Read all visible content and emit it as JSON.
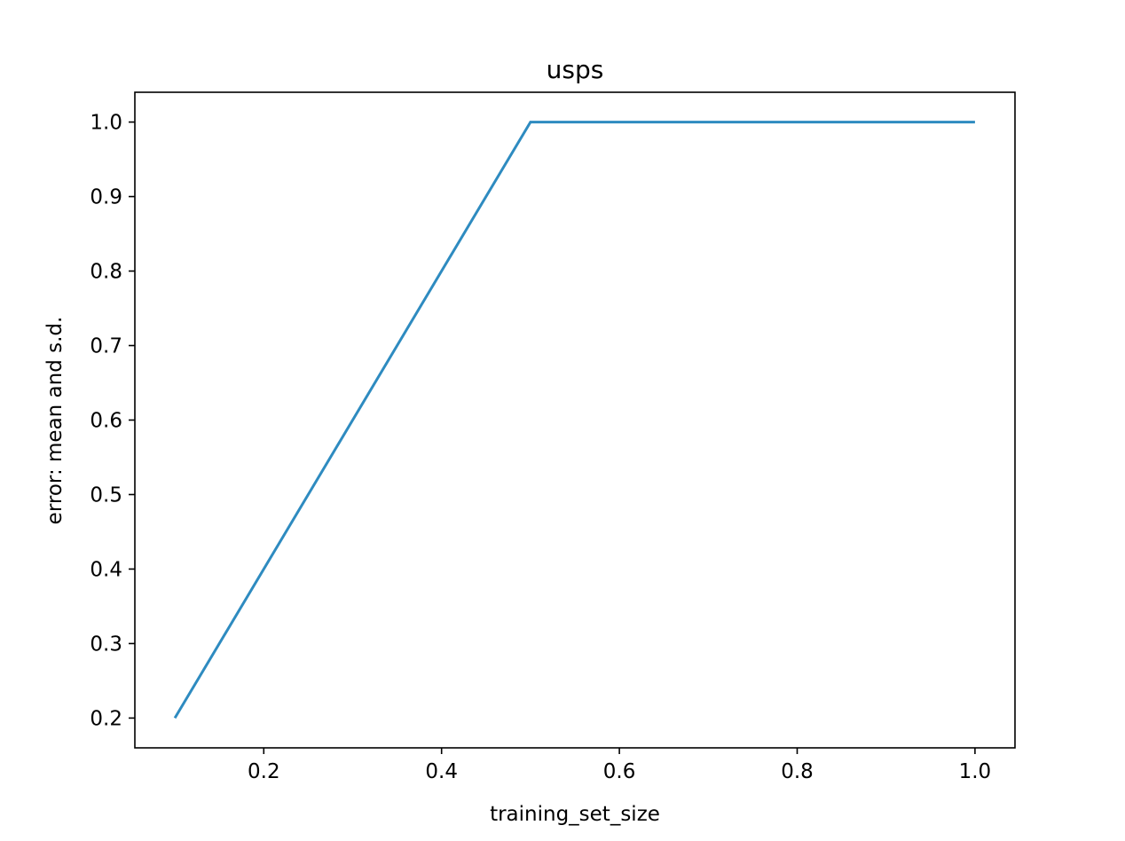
{
  "chart_data": {
    "type": "line",
    "title": "usps",
    "xlabel": "training_set_size",
    "ylabel": "error: mean and s.d.",
    "xlim": [
      0.055,
      1.045
    ],
    "ylim": [
      0.16,
      1.04
    ],
    "xticks": [
      0.2,
      0.4,
      0.6,
      0.8,
      1.0
    ],
    "xtick_labels": [
      "0.2",
      "0.4",
      "0.6",
      "0.8",
      "1.0"
    ],
    "yticks": [
      0.2,
      0.3,
      0.4,
      0.5,
      0.6,
      0.7,
      0.8,
      0.9,
      1.0
    ],
    "ytick_labels": [
      "0.2",
      "0.3",
      "0.4",
      "0.5",
      "0.6",
      "0.7",
      "0.8",
      "0.9",
      "1.0"
    ],
    "grid": false,
    "series": [
      {
        "color": "#2e8bc0",
        "x": [
          0.1,
          0.5,
          1.0
        ],
        "y": [
          0.2,
          1.0,
          1.0
        ]
      }
    ]
  }
}
